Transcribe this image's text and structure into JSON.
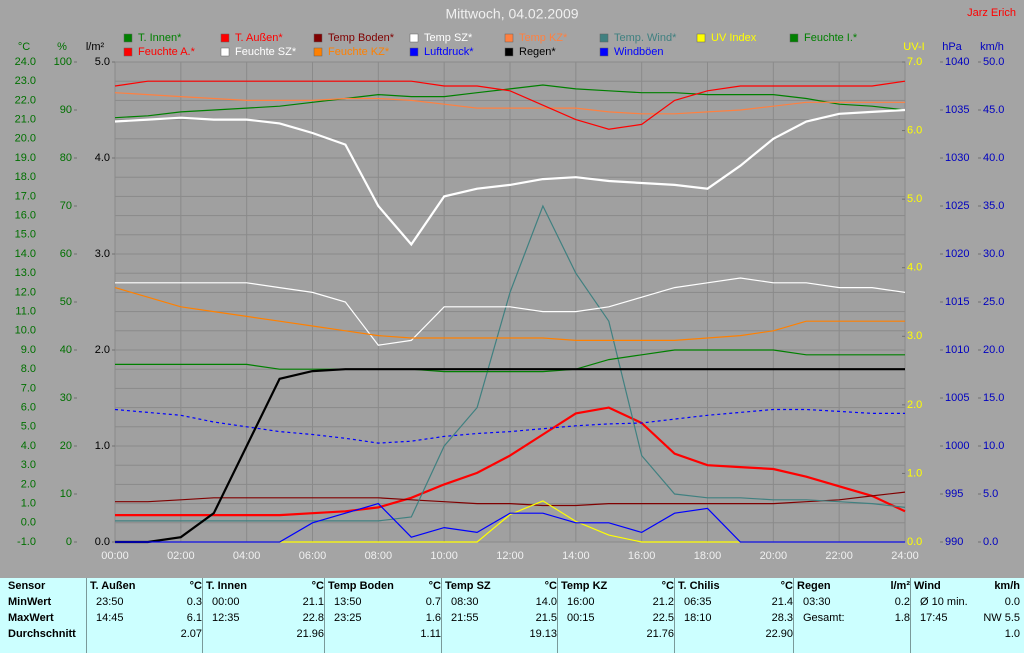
{
  "chart_data": {
    "type": "line",
    "title": "Mittwoch, 04.02.2009",
    "author": "Jarz Erich",
    "grid": true,
    "x": [
      0,
      1,
      2,
      3,
      4,
      5,
      6,
      7,
      8,
      9,
      10,
      11,
      12,
      13,
      14,
      15,
      16,
      17,
      18,
      19,
      20,
      21,
      22,
      23,
      24
    ],
    "xlim": [
      0,
      24
    ],
    "xticks": [
      {
        "value": 0,
        "label": "00:00"
      },
      {
        "value": 2,
        "label": "02:00"
      },
      {
        "value": 4,
        "label": "04:00"
      },
      {
        "value": 6,
        "label": "06:00"
      },
      {
        "value": 8,
        "label": "08:00"
      },
      {
        "value": 10,
        "label": "10:00"
      },
      {
        "value": 12,
        "label": "12:00"
      },
      {
        "value": 14,
        "label": "14:00"
      },
      {
        "value": 16,
        "label": "16:00"
      },
      {
        "value": 18,
        "label": "18:00"
      },
      {
        "value": 20,
        "label": "20:00"
      },
      {
        "value": 22,
        "label": "22:00"
      },
      {
        "value": 24,
        "label": "24:00"
      }
    ],
    "axes": [
      {
        "label": "°C",
        "color": "#007000",
        "ylim": [
          -1,
          24
        ],
        "yticks": [
          {
            "value": -1,
            "label": "-1.0"
          },
          {
            "value": 0,
            "label": "0.0"
          },
          {
            "value": 1,
            "label": "1.0"
          },
          {
            "value": 2,
            "label": "2.0"
          },
          {
            "value": 3,
            "label": "3.0"
          },
          {
            "value": 4,
            "label": "4.0"
          },
          {
            "value": 5,
            "label": "5.0"
          },
          {
            "value": 6,
            "label": "6.0"
          },
          {
            "value": 7,
            "label": "7.0"
          },
          {
            "value": 8,
            "label": "8.0"
          },
          {
            "value": 9,
            "label": "9.0"
          },
          {
            "value": 10,
            "label": "10.0"
          },
          {
            "value": 11,
            "label": "11.0"
          },
          {
            "value": 12,
            "label": "12.0"
          },
          {
            "value": 13,
            "label": "13.0"
          },
          {
            "value": 14,
            "label": "14.0"
          },
          {
            "value": 15,
            "label": "15.0"
          },
          {
            "value": 16,
            "label": "16.0"
          },
          {
            "value": 17,
            "label": "17.0"
          },
          {
            "value": 18,
            "label": "18.0"
          },
          {
            "value": 19,
            "label": "19.0"
          },
          {
            "value": 20,
            "label": "20.0"
          },
          {
            "value": 21,
            "label": "21.0"
          },
          {
            "value": 22,
            "label": "22.0"
          },
          {
            "value": 23,
            "label": "23.0"
          },
          {
            "value": 24,
            "label": "24.0"
          }
        ]
      },
      {
        "label": "%",
        "color": "#007000",
        "ylim": [
          0,
          100
        ],
        "yticks": [
          0,
          10,
          20,
          30,
          40,
          50,
          60,
          70,
          80,
          90,
          100
        ]
      },
      {
        "label": "l/m²",
        "color": "#000000",
        "ylim": [
          0,
          5
        ],
        "yticks": [
          {
            "value": 0,
            "label": "0.0"
          },
          {
            "value": 1,
            "label": "1.0"
          },
          {
            "value": 2,
            "label": "2.0"
          },
          {
            "value": 3,
            "label": "3.0"
          },
          {
            "value": 4,
            "label": "4.0"
          },
          {
            "value": 5,
            "label": "5.0"
          }
        ]
      },
      {
        "label": "UV-I",
        "color": "#ffff00",
        "ylim": [
          0,
          7
        ],
        "yticks": [
          {
            "value": 0,
            "label": "0.0"
          },
          {
            "value": 1,
            "label": "1.0"
          },
          {
            "value": 2,
            "label": "2.0"
          },
          {
            "value": 3,
            "label": "3.0"
          },
          {
            "value": 4,
            "label": "4.0"
          },
          {
            "value": 5,
            "label": "5.0"
          },
          {
            "value": 6,
            "label": "6.0"
          },
          {
            "value": 7,
            "label": "7.0"
          }
        ]
      },
      {
        "label": "hPa",
        "color": "#0000c0",
        "ylim": [
          990,
          1040
        ],
        "yticks": [
          990,
          995,
          1000,
          1005,
          1010,
          1015,
          1020,
          1025,
          1030,
          1035,
          1040
        ]
      },
      {
        "label": "km/h",
        "color": "#0000c0",
        "ylim": [
          0,
          50
        ],
        "yticks": [
          {
            "value": 0,
            "label": "0.0"
          },
          {
            "value": 5,
            "label": "5.0"
          },
          {
            "value": 10,
            "label": "10.0"
          },
          {
            "value": 15,
            "label": "15.0"
          },
          {
            "value": 20,
            "label": "20.0"
          },
          {
            "value": 25,
            "label": "25.0"
          },
          {
            "value": 30,
            "label": "30.0"
          },
          {
            "value": 35,
            "label": "35.0"
          },
          {
            "value": 40,
            "label": "40.0"
          },
          {
            "value": 45,
            "label": "45.0"
          },
          {
            "value": 50,
            "label": "50.0"
          }
        ]
      }
    ],
    "series": [
      {
        "name": "T. Innen*",
        "color": "#008000",
        "axis": 0,
        "values": [
          21.1,
          21.2,
          21.4,
          21.5,
          21.6,
          21.7,
          21.9,
          22.1,
          22.3,
          22.2,
          22.2,
          22.4,
          22.6,
          22.8,
          22.6,
          22.5,
          22.4,
          22.4,
          22.3,
          22.3,
          22.3,
          22.1,
          21.8,
          21.7,
          21.5
        ]
      },
      {
        "name": "T. Außen*",
        "color": "#ff0000",
        "axis": 0,
        "values": [
          0.4,
          0.4,
          0.4,
          0.4,
          0.4,
          0.4,
          0.5,
          0.6,
          0.8,
          1.3,
          2.0,
          2.6,
          3.5,
          4.6,
          5.7,
          6.0,
          5.2,
          3.6,
          3.0,
          2.9,
          2.8,
          2.4,
          1.9,
          1.4,
          0.6
        ]
      },
      {
        "name": "Temp Boden*",
        "color": "#800000",
        "axis": 0,
        "values": [
          1.1,
          1.1,
          1.2,
          1.3,
          1.3,
          1.3,
          1.3,
          1.3,
          1.3,
          1.2,
          1.1,
          1.0,
          1.0,
          0.9,
          0.9,
          1.0,
          1.0,
          1.0,
          1.0,
          1.0,
          1.0,
          1.1,
          1.2,
          1.4,
          1.6
        ]
      },
      {
        "name": "Temp SZ*",
        "color": "#ffffff",
        "axis": 0,
        "values": [
          20.9,
          21.0,
          21.1,
          21.0,
          21.0,
          20.8,
          20.3,
          19.7,
          16.5,
          14.5,
          17.0,
          17.4,
          17.6,
          17.9,
          18.0,
          17.8,
          17.7,
          17.6,
          17.4,
          18.6,
          20.0,
          20.9,
          21.3,
          21.4,
          21.5
        ]
      },
      {
        "name": "Temp KZ*",
        "color": "#ff8040",
        "axis": 0,
        "values": [
          22.4,
          22.3,
          22.2,
          22.1,
          22.0,
          22.0,
          22.0,
          22.1,
          22.1,
          22.0,
          21.8,
          21.6,
          21.6,
          21.6,
          21.6,
          21.4,
          21.3,
          21.3,
          21.4,
          21.5,
          21.7,
          21.9,
          21.9,
          21.9,
          21.9
        ]
      },
      {
        "name": "Temp. Wind*",
        "color": "#408080",
        "axis": 0,
        "values": [
          0.1,
          0.1,
          0.1,
          0.1,
          0.1,
          0.1,
          0.1,
          0.1,
          0.1,
          0.3,
          4.0,
          6.0,
          12.0,
          16.5,
          13.0,
          10.5,
          3.5,
          1.5,
          1.3,
          1.3,
          1.2,
          1.2,
          1.1,
          1.0,
          0.8
        ]
      },
      {
        "name": "UV Index",
        "color": "#ffff00",
        "axis": 3,
        "values": [
          0,
          0,
          0,
          0,
          0,
          0,
          0,
          0,
          0,
          0,
          0,
          0,
          0.4,
          0.6,
          0.3,
          0.1,
          0,
          0,
          0,
          0,
          0,
          0,
          0,
          0,
          0
        ]
      },
      {
        "name": "Feuchte I.*",
        "color": "#008000",
        "axis": 1,
        "values": [
          37,
          37,
          37,
          37,
          37,
          36,
          36,
          36,
          36,
          36,
          35.5,
          35.5,
          35.5,
          35.5,
          36,
          38,
          39,
          40,
          40,
          40,
          40,
          39,
          39,
          39,
          39
        ]
      },
      {
        "name": "Feuchte A.*",
        "color": "#ff0000",
        "axis": 1,
        "values": [
          95,
          96,
          96,
          96,
          96,
          96,
          96,
          96,
          96,
          96,
          95,
          95,
          94,
          91,
          88,
          86,
          87,
          92,
          94,
          95,
          95,
          95,
          95,
          95,
          96
        ]
      },
      {
        "name": "Feuchte SZ*",
        "color": "#ffffff",
        "axis": 1,
        "values": [
          54,
          54,
          54,
          54,
          54,
          53,
          52,
          50,
          41,
          42,
          49,
          49,
          49,
          48,
          48,
          49,
          51,
          53,
          54,
          55,
          54,
          54,
          53,
          53,
          52
        ]
      },
      {
        "name": "Feuchte KZ*",
        "color": "#ff8000",
        "axis": 1,
        "values": [
          53,
          51,
          49,
          48,
          47,
          46,
          45,
          44,
          43,
          42.5,
          42.5,
          42.5,
          42.5,
          42.5,
          42,
          42,
          42,
          42,
          42.5,
          43,
          44,
          46,
          46,
          46,
          46
        ]
      },
      {
        "name": "Luftdruck*",
        "color": "#0000ff",
        "axis": 4,
        "dashed": true,
        "values": [
          1003.8,
          1003.5,
          1003.2,
          1002.5,
          1002,
          1001.5,
          1001.2,
          1000.8,
          1000.3,
          1000.5,
          1001,
          1001.3,
          1001.5,
          1001.8,
          1002.1,
          1002.3,
          1002.4,
          1002.8,
          1003.2,
          1003.5,
          1003.8,
          1003.8,
          1003.6,
          1003.4,
          1003.4
        ]
      },
      {
        "name": "Regen*",
        "color": "#000000",
        "axis": 2,
        "values": [
          0,
          0,
          0.05,
          0.3,
          1.0,
          1.7,
          1.78,
          1.8,
          1.8,
          1.8,
          1.8,
          1.8,
          1.8,
          1.8,
          1.8,
          1.8,
          1.8,
          1.8,
          1.8,
          1.8,
          1.8,
          1.8,
          1.8,
          1.8,
          1.8
        ]
      },
      {
        "name": "Windböen",
        "color": "#0000ff",
        "axis": 5,
        "values": [
          0,
          0,
          0,
          0,
          0,
          0,
          2,
          3,
          4,
          0.5,
          1.5,
          1,
          3,
          3,
          2,
          2,
          1,
          3,
          3.5,
          0,
          0,
          0,
          0,
          0,
          0
        ]
      }
    ]
  },
  "table": {
    "row_labels": [
      "Sensor",
      "MinWert",
      "MaxWert",
      "Durchschnitt"
    ],
    "groups": [
      {
        "name": "T. Außen",
        "unit": "°C",
        "rows": [
          [
            "23:50",
            "0.3"
          ],
          [
            "14:45",
            "6.1"
          ],
          [
            "2.07"
          ]
        ]
      },
      {
        "name": "T. Innen",
        "unit": "°C",
        "rows": [
          [
            "00:00",
            "21.1"
          ],
          [
            "12:35",
            "22.8"
          ],
          [
            "21.96"
          ]
        ]
      },
      {
        "name": "Temp Boden",
        "unit": "°C",
        "rows": [
          [
            "13:50",
            "0.7"
          ],
          [
            "23:25",
            "1.6"
          ],
          [
            "1.11"
          ]
        ]
      },
      {
        "name": "Temp SZ",
        "unit": "°C",
        "rows": [
          [
            "08:30",
            "14.0"
          ],
          [
            "21:55",
            "21.5"
          ],
          [
            "19.13"
          ]
        ]
      },
      {
        "name": "Temp KZ",
        "unit": "°C",
        "rows": [
          [
            "16:00",
            "21.2"
          ],
          [
            "00:15",
            "22.5"
          ],
          [
            "21.76"
          ]
        ]
      },
      {
        "name": "T. Chilis",
        "unit": "°C",
        "rows": [
          [
            "06:35",
            "21.4"
          ],
          [
            "18:10",
            "28.3"
          ],
          [
            "22.90"
          ]
        ]
      },
      {
        "name": "Regen",
        "unit": "l/m²",
        "rows": [
          [
            "03:30",
            "0.2"
          ],
          [
            "Gesamt:",
            "1.8"
          ]
        ]
      },
      {
        "name": "Wind",
        "unit": "km/h",
        "rows": [
          [
            "Ø 10 min.",
            "0.0"
          ],
          [
            "17:45",
            "NW 5.5"
          ],
          [
            "1.0"
          ]
        ]
      }
    ]
  }
}
